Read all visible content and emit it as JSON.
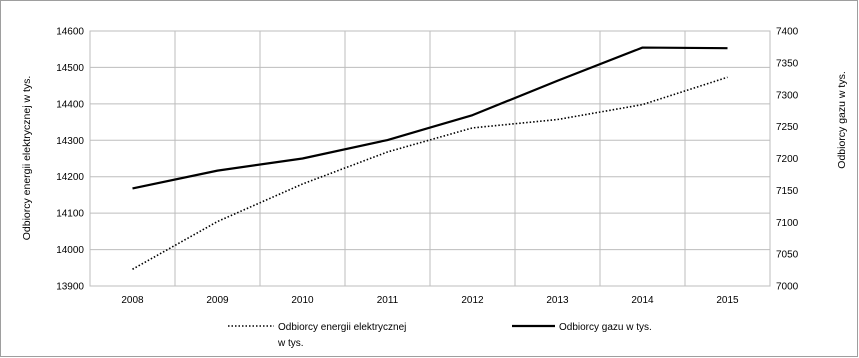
{
  "chart_data": {
    "type": "line",
    "categories": [
      "2008",
      "2009",
      "2010",
      "2011",
      "2012",
      "2013",
      "2014",
      "2015"
    ],
    "series": [
      {
        "name": "Odbiorcy energii elektrycznej w tys.",
        "legend_lines": [
          "Odbiorcy energii elektrycznej",
          "w tys."
        ],
        "axis": "left",
        "line_style": "dotted",
        "color": "#000000",
        "values": [
          13946,
          14077,
          14180,
          14268,
          14334,
          14357,
          14398,
          14473
        ]
      },
      {
        "name": "Odbiorcy gazu w tys.",
        "legend_lines": [
          "Odbiorcy gazu w tys."
        ],
        "axis": "right",
        "line_style": "solid",
        "color": "#000000",
        "values": [
          7153,
          7181,
          7200,
          7229,
          7268,
          7322,
          7374,
          7373
        ]
      }
    ],
    "y_left": {
      "label": "Odbiorcy energii elektrycznej w tys.",
      "ylim": [
        13900,
        14600
      ],
      "ticks": [
        13900,
        14000,
        14100,
        14200,
        14300,
        14400,
        14500,
        14600
      ]
    },
    "y_right": {
      "label": "Odbiorcy gazu w tys.",
      "ylim": [
        7000,
        7400
      ],
      "ticks": [
        7000,
        7050,
        7100,
        7150,
        7200,
        7250,
        7300,
        7350,
        7400
      ]
    },
    "grid": true,
    "legend_position": "bottom",
    "border_color": "#bdbdbd",
    "grid_color": "#bdbdbd"
  }
}
